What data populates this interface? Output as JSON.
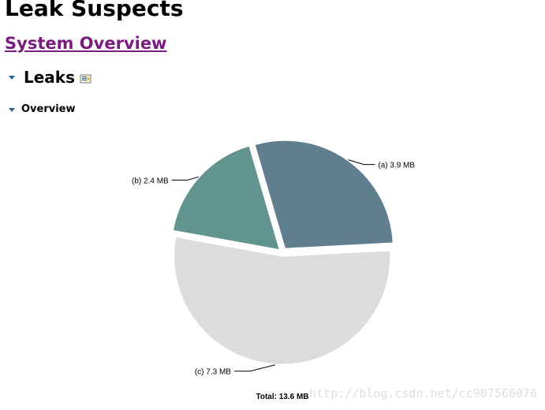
{
  "page": {
    "title": "Leak Suspects",
    "overview_link": "System Overview"
  },
  "sections": {
    "leaks": {
      "label": "Leaks",
      "toggle_icon": "triangle-down-icon",
      "report_icon": "report-icon"
    },
    "overview": {
      "label": "Overview",
      "toggle_icon": "triangle-down-icon"
    }
  },
  "colors": {
    "link": "#7a1b7f",
    "slice_a": "#5f7f8f",
    "slice_b": "#62948f",
    "slice_c": "#dcdcdc"
  },
  "chart_data": {
    "type": "pie",
    "unit": "MB",
    "slices": [
      {
        "label": "(a)  3.9 MB",
        "name": "(a)",
        "value": 3.9,
        "color": "#5f7f8f"
      },
      {
        "label": "(b)  2.4 MB",
        "name": "(b)",
        "value": 2.4,
        "color": "#62948f"
      },
      {
        "label": "(c)  7.3 MB",
        "name": "(c)",
        "value": 7.3,
        "color": "#dcdcdc"
      }
    ],
    "total_label": "Total: 13.6 MB",
    "total": 13.6,
    "exploded": true
  },
  "watermark": "http://blog.csdn.net/cc907566076"
}
